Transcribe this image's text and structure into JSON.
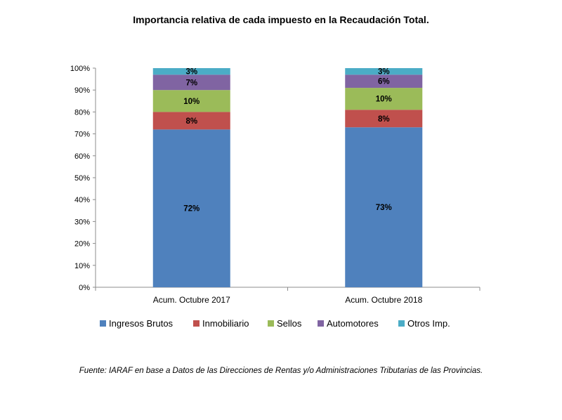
{
  "chart_data": {
    "type": "bar",
    "stacked": true,
    "title": "Importancia relativa de cada impuesto en la Recaudación Total.",
    "categories": [
      "Acum. Octubre 2017",
      "Acum. Octubre 2018"
    ],
    "ylim": [
      0,
      100
    ],
    "yticks": [
      0,
      10,
      20,
      30,
      40,
      50,
      60,
      70,
      80,
      90,
      100
    ],
    "ytick_suffix": "%",
    "legend_position": "bottom",
    "series": [
      {
        "name": "Ingresos Brutos",
        "color": "#4F81BD",
        "values": [
          72,
          73
        ],
        "labels": [
          "72%",
          "73%"
        ]
      },
      {
        "name": "Inmobiliario",
        "color": "#C0504D",
        "values": [
          8,
          8
        ],
        "labels": [
          "8%",
          "8%"
        ]
      },
      {
        "name": "Sellos",
        "color": "#9BBB59",
        "values": [
          10,
          10
        ],
        "labels": [
          "10%",
          "10%"
        ]
      },
      {
        "name": "Automotores",
        "color": "#8064A2",
        "values": [
          7,
          6
        ],
        "labels": [
          "7%",
          "6%"
        ]
      },
      {
        "name": "Otros Imp.",
        "color": "#4BACC6",
        "values": [
          3,
          3
        ],
        "labels": [
          "3%",
          "3%"
        ]
      }
    ]
  },
  "source_note": "Fuente: IARAF en base a Datos de las Direcciones de Rentas y/o Administraciones Tributarias de las Provincias."
}
